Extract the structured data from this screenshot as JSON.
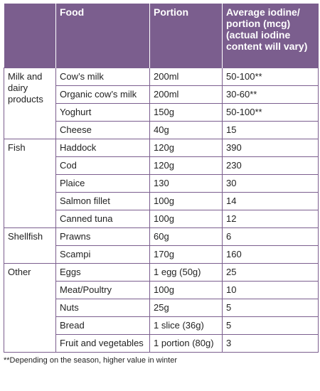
{
  "table": {
    "header": [
      "Food",
      "Portion",
      "Average iodine/ portion (mcg) (actual iodine content will vary)"
    ],
    "groups": [
      {
        "name": "Milk and dairy products",
        "rows": [
          [
            "Cow’s milk",
            "200ml",
            "50-100**"
          ],
          [
            "Organic cow’s milk",
            "200ml",
            "30-60**"
          ],
          [
            "Yoghurt",
            "150g",
            "50-100**"
          ],
          [
            "Cheese",
            "40g",
            "15"
          ]
        ]
      },
      {
        "name": "Fish",
        "rows": [
          [
            "Haddock",
            "120g",
            "390"
          ],
          [
            "Cod",
            "120g",
            "230"
          ],
          [
            "Plaice",
            "130",
            "30"
          ],
          [
            "Salmon fillet",
            "100g",
            "14"
          ],
          [
            "Canned tuna",
            "100g",
            "12"
          ]
        ]
      },
      {
        "name": "Shellfish",
        "rows": [
          [
            "Prawns",
            "60g",
            "6"
          ],
          [
            "Scampi",
            "170g",
            "160"
          ]
        ]
      },
      {
        "name": "Other",
        "rows": [
          [
            "Eggs",
            "1 egg (50g)",
            "25"
          ],
          [
            "Meat/Poultry",
            "100g",
            "10"
          ],
          [
            "Nuts",
            "25g",
            "5"
          ],
          [
            "Bread",
            "1 slice (36g)",
            "5"
          ],
          [
            "Fruit and vegetables",
            "1 portion (80g)",
            "3"
          ]
        ]
      }
    ]
  },
  "footnote": "**Depending on the season, higher value in winter"
}
